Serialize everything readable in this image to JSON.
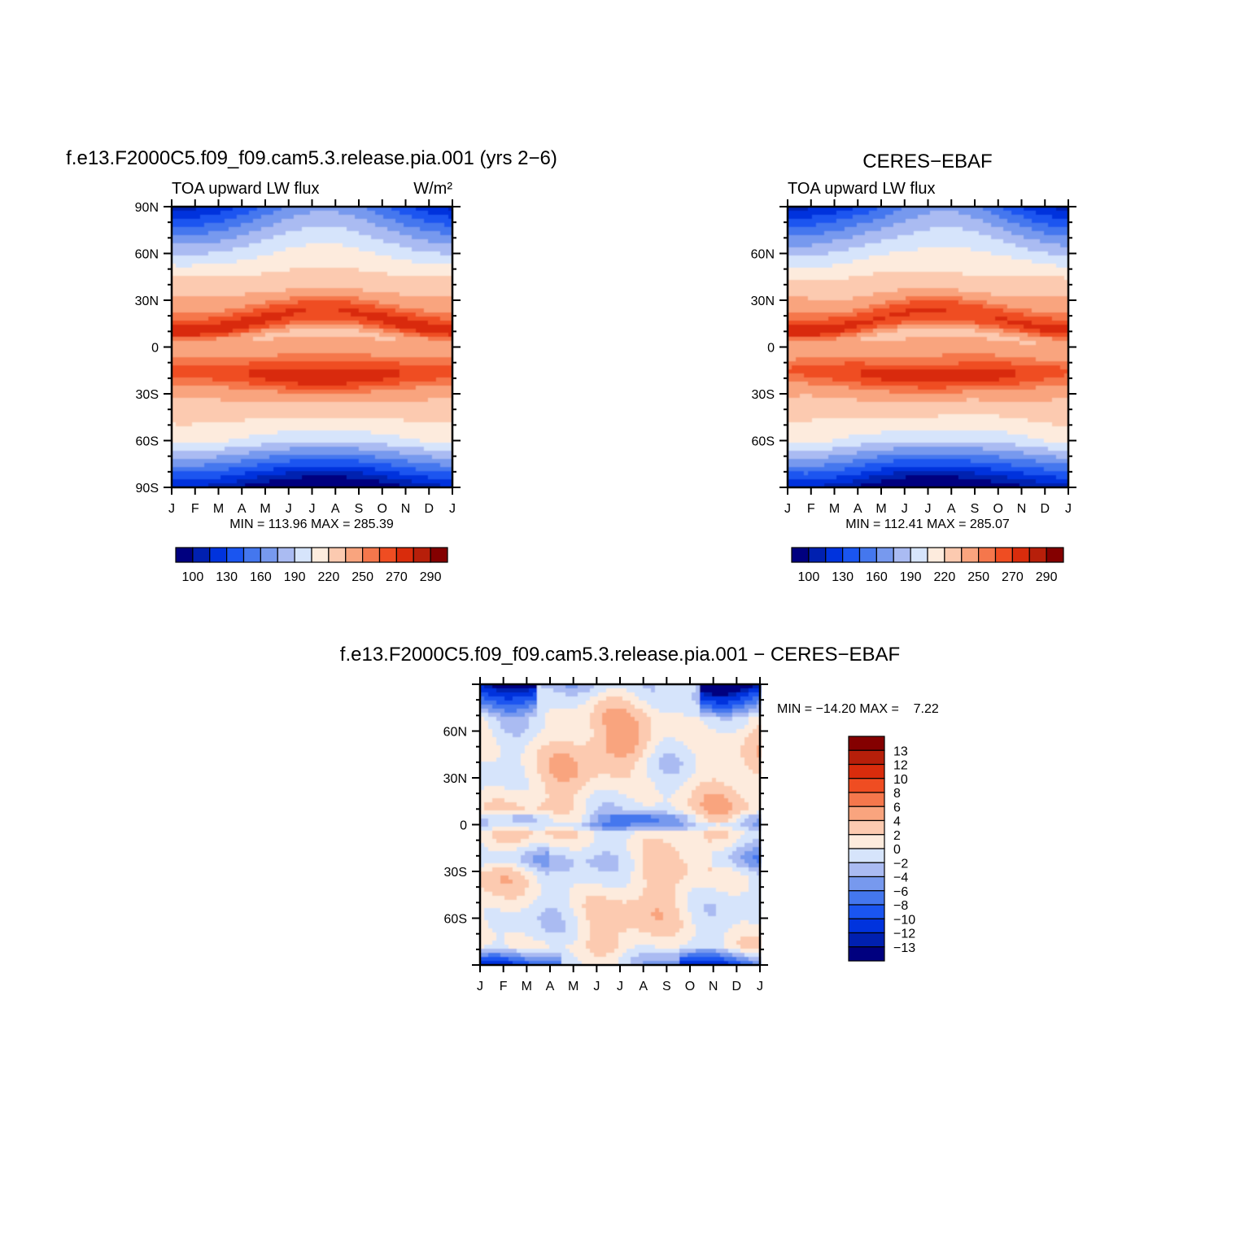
{
  "palette": {
    "main": [
      "#00007f",
      "#0020b0",
      "#0033dd",
      "#1a55f0",
      "#4477ee",
      "#7799ee",
      "#aabbf2",
      "#d6e4fb",
      "#fdebdd",
      "#fccab0",
      "#f9a47e",
      "#f5774c",
      "#ef4d22",
      "#d92c0c",
      "#b71f0a",
      "#840000"
    ],
    "diff": [
      "#840000",
      "#b71f0a",
      "#d92c0c",
      "#ef4d22",
      "#f5774c",
      "#f9a47e",
      "#fccab0",
      "#fdebdd",
      "#d6e4fb",
      "#aabbf2",
      "#7799ee",
      "#4477ee",
      "#1a55f0",
      "#0033dd",
      "#0020b0",
      "#00007f"
    ]
  },
  "chart_data": [
    {
      "type": "heatmap",
      "title": "f.e13.F2000C5.f09_f09.cam5.3.release.pia.001 (yrs 2−6)",
      "left_string": "TOA upward LW flux",
      "right_string": "W/m²",
      "x_ticks": [
        "J",
        "F",
        "M",
        "A",
        "M",
        "J",
        "J",
        "A",
        "S",
        "O",
        "N",
        "D",
        "J"
      ],
      "y_ticks": [
        "90N",
        "60N",
        "30N",
        "0",
        "30S",
        "60S",
        "90S"
      ],
      "stats": "MIN = 113.96 MAX = 285.39",
      "colorbar_labels": [
        "100",
        "130",
        "160",
        "190",
        "220",
        "250",
        "270",
        "290"
      ],
      "value_range": [
        113.96,
        285.39
      ]
    },
    {
      "type": "heatmap",
      "title": "CERES−EBAF",
      "left_string": "TOA upward LW flux",
      "right_string": "",
      "x_ticks": [
        "J",
        "F",
        "M",
        "A",
        "M",
        "J",
        "J",
        "A",
        "S",
        "O",
        "N",
        "D",
        "J"
      ],
      "y_ticks": [
        "60N",
        "30N",
        "0",
        "30S",
        "60S"
      ],
      "stats": "MIN = 112.41 MAX = 285.07",
      "colorbar_labels": [
        "100",
        "130",
        "160",
        "190",
        "220",
        "250",
        "270",
        "290"
      ],
      "value_range": [
        112.41,
        285.07
      ]
    },
    {
      "type": "heatmap",
      "title": "f.e13.F2000C5.f09_f09.cam5.3.release.pia.001 − CERES−EBAF",
      "x_ticks": [
        "J",
        "F",
        "M",
        "A",
        "M",
        "J",
        "J",
        "A",
        "S",
        "O",
        "N",
        "D",
        "J"
      ],
      "y_ticks": [
        "60N",
        "30N",
        "0",
        "30S",
        "60S"
      ],
      "stats": "MIN = −14.20 MAX =    7.22",
      "colorbar_labels": [
        "13",
        "12",
        "10",
        "8",
        "6",
        "4",
        "2",
        "0",
        "−2",
        "−4",
        "−6",
        "−8",
        "−10",
        "−12",
        "−13"
      ],
      "value_range": [
        -14.2,
        7.22
      ]
    }
  ]
}
